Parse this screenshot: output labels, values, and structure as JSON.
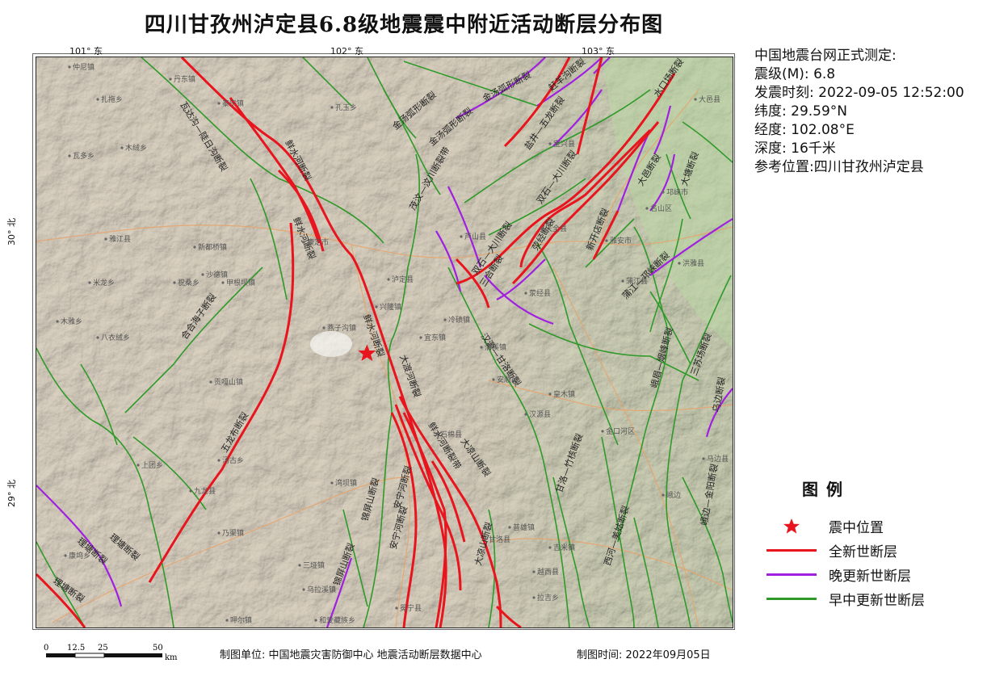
{
  "title": "四川甘孜州泸定县6.8级地震震中附近活动断层分布图",
  "info": {
    "line1": "中国地震台网正式测定:",
    "magnitude": "震级(M): 6.8",
    "time": "发震时刻: 2022-09-05 12:52:00",
    "latitude": "纬度: 29.59°N",
    "longitude": "经度: 102.08°E",
    "depth": "深度: 16千米",
    "reference": "参考位置:四川甘孜州泸定县"
  },
  "legend": {
    "title": "图例",
    "items": [
      {
        "label": "震中位置",
        "color": "#e8141e",
        "symbol": "star"
      },
      {
        "label": "全新世断层",
        "color": "#e8141e",
        "symbol": "line"
      },
      {
        "label": "晚更新世断层",
        "color": "#a020e0",
        "symbol": "line"
      },
      {
        "label": "早中更新世断层",
        "color": "#2f9a2a",
        "symbol": "line"
      }
    ]
  },
  "ticks": {
    "lon": [
      "101° 东",
      "102° 东",
      "103° 东"
    ],
    "lat": [
      "30° 北",
      "29° 北"
    ]
  },
  "scale": {
    "labels": [
      "0",
      "12.5",
      "25",
      "50"
    ],
    "unit": "km"
  },
  "footer": {
    "unit": "制图单位: 中国地震灾害防御中心 地震活动断层数据中心",
    "date": "制图时间: 2022年09月05日"
  },
  "fault_labels": [
    "瓦达沟—陡日沟断裂",
    "鲜水河断裂",
    "鲜水河断裂",
    "鲜水河断裂",
    "金汤弧形断裂",
    "金汤弧形断裂",
    "金汤弧形断裂",
    "赶羊沟断裂",
    "盐井—五龙断裂",
    "茂汶—汶川断裂带",
    "双石—大川断裂",
    "双石—大川断裂",
    "水口场断裂",
    "大邑断裂",
    "大塘断裂",
    "新开店断裂",
    "荥经断裂",
    "三合断裂",
    "蒲江—邛崃断裂",
    "峨眉—烟峰断裂",
    "三苏场断裂",
    "合合海子断裂",
    "五龙布断裂",
    "大渡河断裂",
    "汉源—甘洛断裂",
    "鲜水河断裂带",
    "大凉山断裂",
    "锦屏山断裂",
    "安宁河断裂",
    "安宁河断裂",
    "锦屏山断裂",
    "理塘断裂",
    "理塘断裂",
    "理塘断裂",
    "大凉山断裂",
    "甘洛—竹核断裂",
    "西河—美姑断裂",
    "峨边—金阳断裂",
    "乌边断裂"
  ],
  "places": [
    "仲尼镇",
    "扎拖乡",
    "瓦多乡",
    "木绒乡",
    "泰宁镇",
    "丹东镇",
    "孔玉乡",
    "雅江县",
    "康定市",
    "新都桥镇",
    "沙德镇",
    "八衣绒乡",
    "甲根坝镇",
    "祝桑乡",
    "米龙乡",
    "木雅乡",
    "燕子沟镇",
    "贡嘎山镇",
    "九龙县",
    "汤古乡",
    "上团乡",
    "乃渠镇",
    "三垭镇",
    "乌拉溪镇",
    "康坞乡",
    "和爱藏族乡",
    "呷尔镇",
    "湾坝镇",
    "兴隆镇",
    "冷碛镇",
    "泸定县",
    "石棉县",
    "汉源县",
    "甘洛县",
    "越西县",
    "冕宁县",
    "天全县",
    "宝兴县",
    "芦山县",
    "雅安市",
    "名山区",
    "荥经县",
    "洪雅县",
    "峨边",
    "金口河区",
    "马边县",
    "大邑县",
    "邛崃市",
    "蒲江县",
    "宜东镇",
    "清溪镇",
    "安顺场",
    "皇木镇",
    "吉米镇",
    "普雄镇",
    "拉吉乡"
  ],
  "epicenter": {
    "lat": 29.59,
    "lon": 102.08
  }
}
